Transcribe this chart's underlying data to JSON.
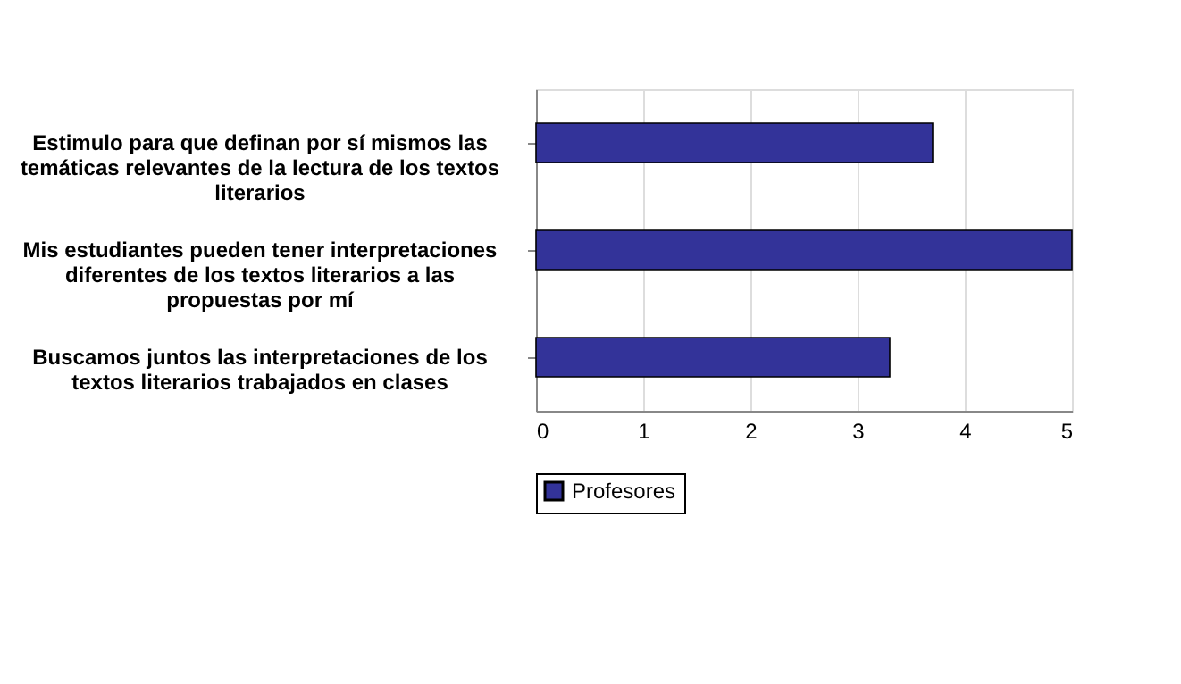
{
  "chart_data": {
    "type": "bar",
    "orientation": "horizontal",
    "categories": [
      "Estimulo para que definan por sí mismos las temáticas relevantes de la lectura de los textos literarios",
      "Mis estudiantes pueden tener interpretaciones diferentes de los textos literarios a las propuestas por mí",
      "Buscamos juntos las interpretaciones de los textos literarios trabajados en clases"
    ],
    "series": [
      {
        "name": "Profesores",
        "color": "#333399",
        "values": [
          3.7,
          5,
          3.3
        ]
      }
    ],
    "xlim": [
      0,
      5
    ],
    "xticks": [
      0,
      1,
      2,
      3,
      4,
      5
    ],
    "grid": "x",
    "legend": "bottom"
  }
}
